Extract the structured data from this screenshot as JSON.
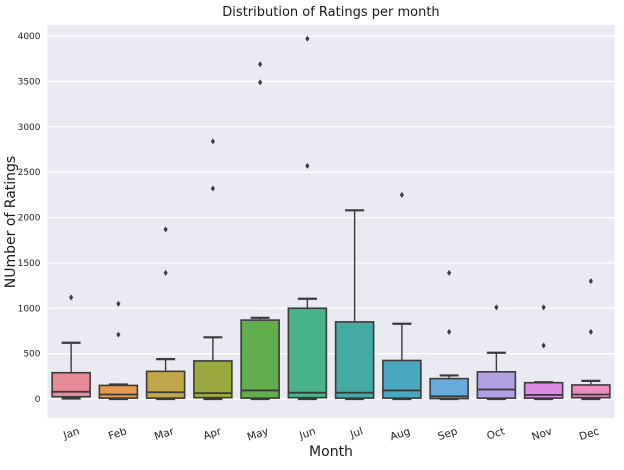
{
  "chart_data": {
    "type": "box",
    "title": "Distribution of Ratings per month",
    "xlabel": "Month",
    "ylabel": "NUmber of Ratings",
    "categories": [
      "Jan",
      "Feb",
      "Mar",
      "Apr",
      "May",
      "Jun",
      "Jul",
      "Aug",
      "Sep",
      "Oct",
      "Nov",
      "Dec"
    ],
    "yticks": [
      0,
      500,
      1000,
      1500,
      2000,
      2500,
      3000,
      3500,
      4000
    ],
    "ylim": [
      -209,
      4122
    ],
    "grid": "horizontal white gridlines on lavender panel",
    "legend": "none",
    "x_tick_rotation_deg": -18,
    "boxes": [
      {
        "label": "Jan",
        "whisker_low": 5,
        "q1": 25,
        "median": 80,
        "q3": 290,
        "whisker_high": 620,
        "outliers": [
          1120
        ],
        "color": "#e78b9b"
      },
      {
        "label": "Feb",
        "whisker_low": 0,
        "q1": 10,
        "median": 50,
        "q3": 150,
        "whisker_high": 160,
        "outliers": [
          710,
          1050
        ],
        "color": "#e39952"
      },
      {
        "label": "Mar",
        "whisker_low": 0,
        "q1": 10,
        "median": 75,
        "q3": 305,
        "whisker_high": 440,
        "outliers": [
          1390,
          1870
        ],
        "color": "#c2a64b"
      },
      {
        "label": "Apr",
        "whisker_low": 0,
        "q1": 15,
        "median": 65,
        "q3": 420,
        "whisker_high": 680,
        "outliers": [
          2320,
          2840
        ],
        "color": "#9ba83e"
      },
      {
        "label": "May",
        "whisker_low": 0,
        "q1": 10,
        "median": 95,
        "q3": 870,
        "whisker_high": 895,
        "outliers": [
          3490,
          3690
        ],
        "color": "#63ae4c"
      },
      {
        "label": "Jun",
        "whisker_low": 0,
        "q1": 15,
        "median": 70,
        "q3": 1000,
        "whisker_high": 1105,
        "outliers": [
          2570,
          3970
        ],
        "color": "#49b389"
      },
      {
        "label": "Jul",
        "whisker_low": 0,
        "q1": 10,
        "median": 70,
        "q3": 850,
        "whisker_high": 2080,
        "outliers": [],
        "color": "#45aaa2"
      },
      {
        "label": "Aug",
        "whisker_low": 0,
        "q1": 10,
        "median": 95,
        "q3": 425,
        "whisker_high": 830,
        "outliers": [
          2250
        ],
        "color": "#49a8c0"
      },
      {
        "label": "Sep",
        "whisker_low": 0,
        "q1": 5,
        "median": 30,
        "q3": 225,
        "whisker_high": 260,
        "outliers": [
          740,
          1390
        ],
        "color": "#68abdb"
      },
      {
        "label": "Oct",
        "whisker_low": 0,
        "q1": 10,
        "median": 105,
        "q3": 300,
        "whisker_high": 510,
        "outliers": [
          1010
        ],
        "color": "#b1a1e2"
      },
      {
        "label": "Nov",
        "whisker_low": 0,
        "q1": 10,
        "median": 45,
        "q3": 180,
        "whisker_high": 185,
        "outliers": [
          590,
          1010
        ],
        "color": "#dc8ce4"
      },
      {
        "label": "Dec",
        "whisker_low": 0,
        "q1": 15,
        "median": 50,
        "q3": 155,
        "whisker_high": 200,
        "outliers": [
          740,
          1300
        ],
        "color": "#ed8ec3"
      }
    ]
  },
  "colors": {
    "figure_bg": "#ffffff",
    "panel_bg": "#eaeaf2",
    "gridline": "#ffffff",
    "box_edge": "#3b3b3b",
    "median_line": "#3b3b3b",
    "flier": "#3d3d3d",
    "text": "#262626"
  }
}
